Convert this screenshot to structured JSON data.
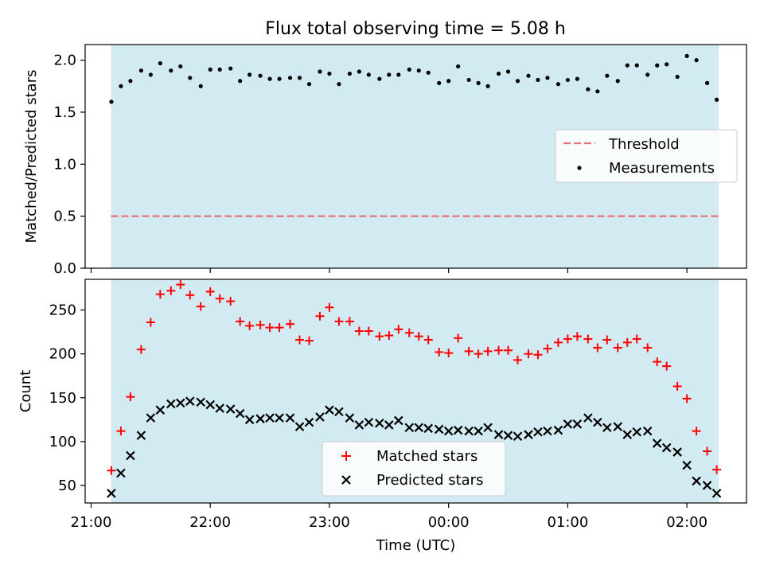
{
  "figure_title": "Flux total observing time = 5.08 h",
  "colors": {
    "shade": "#add8e6",
    "threshold": "#e8737a",
    "measurement": "#000000",
    "matched": "#ff0000",
    "predicted": "#000000"
  },
  "chart_data": [
    {
      "type": "scatter",
      "title": "",
      "xlabel": "",
      "ylabel": "Matched/Predicted stars",
      "ylim": [
        0,
        2.15
      ],
      "yticks": [
        "0.0",
        "0.5",
        "1.0",
        "1.5",
        "2.0"
      ],
      "yticks_values": [
        0,
        0.5,
        1.0,
        1.5,
        2.0
      ],
      "grid": false,
      "legend_position": "center-right",
      "shaded_interval_hours": [
        21.1667,
        26.2667
      ],
      "threshold": {
        "name": "Threshold",
        "value": 0.5
      },
      "series": [
        {
          "name": "Measurements",
          "x": [
            21.17,
            21.25,
            21.33,
            21.42,
            21.5,
            21.58,
            21.67,
            21.75,
            21.83,
            21.92,
            22.0,
            22.08,
            22.17,
            22.25,
            22.33,
            22.42,
            22.5,
            22.58,
            22.67,
            22.75,
            22.83,
            22.92,
            23.0,
            23.08,
            23.17,
            23.25,
            23.33,
            23.42,
            23.5,
            23.58,
            23.67,
            23.75,
            23.83,
            23.92,
            24.0,
            24.08,
            24.17,
            24.25,
            24.33,
            24.42,
            24.5,
            24.58,
            24.67,
            24.75,
            24.83,
            24.92,
            25.0,
            25.08,
            25.17,
            25.25,
            25.33,
            25.42,
            25.5,
            25.58,
            25.67,
            25.75,
            25.83,
            25.92,
            26.0,
            26.08,
            26.17,
            26.25
          ],
          "y": [
            1.6,
            1.75,
            1.8,
            1.9,
            1.86,
            1.97,
            1.9,
            1.94,
            1.83,
            1.75,
            1.91,
            1.91,
            1.92,
            1.8,
            1.86,
            1.85,
            1.82,
            1.82,
            1.83,
            1.83,
            1.77,
            1.89,
            1.87,
            1.77,
            1.87,
            1.89,
            1.86,
            1.82,
            1.86,
            1.86,
            1.91,
            1.9,
            1.88,
            1.78,
            1.8,
            1.94,
            1.81,
            1.78,
            1.75,
            1.87,
            1.89,
            1.8,
            1.85,
            1.81,
            1.83,
            1.77,
            1.81,
            1.82,
            1.72,
            1.7,
            1.85,
            1.8,
            1.95,
            1.95,
            1.86,
            1.95,
            1.96,
            1.84,
            2.04,
            2.0,
            1.78,
            1.62
          ]
        }
      ]
    },
    {
      "type": "scatter",
      "title": "",
      "xlabel": "Time (UTC)",
      "ylabel": "Count",
      "ylim": [
        30,
        285
      ],
      "yticks": [
        "50",
        "100",
        "150",
        "200",
        "250"
      ],
      "yticks_values": [
        50,
        100,
        150,
        200,
        250
      ],
      "xlim_hours": [
        20.95,
        26.5
      ],
      "xticks": [
        "21:00",
        "22:00",
        "23:00",
        "00:00",
        "01:00",
        "02:00"
      ],
      "xticks_hours": [
        21,
        22,
        23,
        24,
        25,
        26
      ],
      "grid": false,
      "legend_position": "bottom-center",
      "shaded_interval_hours": [
        21.1667,
        26.2667
      ],
      "series": [
        {
          "name": "Matched stars",
          "marker": "plus",
          "x": [
            21.17,
            21.25,
            21.33,
            21.42,
            21.5,
            21.58,
            21.67,
            21.75,
            21.83,
            21.92,
            22.0,
            22.08,
            22.17,
            22.25,
            22.33,
            22.42,
            22.5,
            22.58,
            22.67,
            22.75,
            22.83,
            22.92,
            23.0,
            23.08,
            23.17,
            23.25,
            23.33,
            23.42,
            23.5,
            23.58,
            23.67,
            23.75,
            23.83,
            23.92,
            24.0,
            24.08,
            24.17,
            24.25,
            24.33,
            24.42,
            24.5,
            24.58,
            24.67,
            24.75,
            24.83,
            24.92,
            25.0,
            25.08,
            25.17,
            25.25,
            25.33,
            25.42,
            25.5,
            25.58,
            25.67,
            25.75,
            25.83,
            25.92,
            26.0,
            26.08,
            26.17,
            26.25
          ],
          "y": [
            67,
            112,
            151,
            205,
            236,
            268,
            272,
            279,
            267,
            254,
            271,
            263,
            260,
            237,
            232,
            233,
            230,
            230,
            234,
            216,
            215,
            243,
            253,
            237,
            237,
            226,
            226,
            220,
            221,
            228,
            224,
            220,
            216,
            202,
            201,
            218,
            203,
            200,
            203,
            204,
            204,
            193,
            200,
            199,
            206,
            213,
            217,
            220,
            217,
            207,
            216,
            207,
            213,
            217,
            207,
            191,
            186,
            163,
            149,
            112,
            89,
            68
          ]
        },
        {
          "name": "Predicted stars",
          "marker": "x",
          "x": [
            21.17,
            21.25,
            21.33,
            21.42,
            21.5,
            21.58,
            21.67,
            21.75,
            21.83,
            21.92,
            22.0,
            22.08,
            22.17,
            22.25,
            22.33,
            22.42,
            22.5,
            22.58,
            22.67,
            22.75,
            22.83,
            22.92,
            23.0,
            23.08,
            23.17,
            23.25,
            23.33,
            23.42,
            23.5,
            23.58,
            23.67,
            23.75,
            23.83,
            23.92,
            24.0,
            24.08,
            24.17,
            24.25,
            24.33,
            24.42,
            24.5,
            24.58,
            24.67,
            24.75,
            24.83,
            24.92,
            25.0,
            25.08,
            25.17,
            25.25,
            25.33,
            25.42,
            25.5,
            25.58,
            25.67,
            25.75,
            25.83,
            25.92,
            26.0,
            26.08,
            26.17,
            26.25
          ],
          "y": [
            41,
            64,
            84,
            107,
            127,
            136,
            143,
            144,
            146,
            145,
            142,
            138,
            137,
            132,
            125,
            126,
            127,
            127,
            127,
            117,
            122,
            128,
            136,
            134,
            127,
            119,
            122,
            121,
            119,
            124,
            116,
            116,
            115,
            114,
            112,
            113,
            112,
            112,
            116,
            108,
            107,
            106,
            108,
            111,
            112,
            113,
            120,
            120,
            127,
            122,
            116,
            117,
            108,
            111,
            112,
            98,
            93,
            88,
            73,
            55,
            50,
            41
          ]
        }
      ]
    }
  ]
}
